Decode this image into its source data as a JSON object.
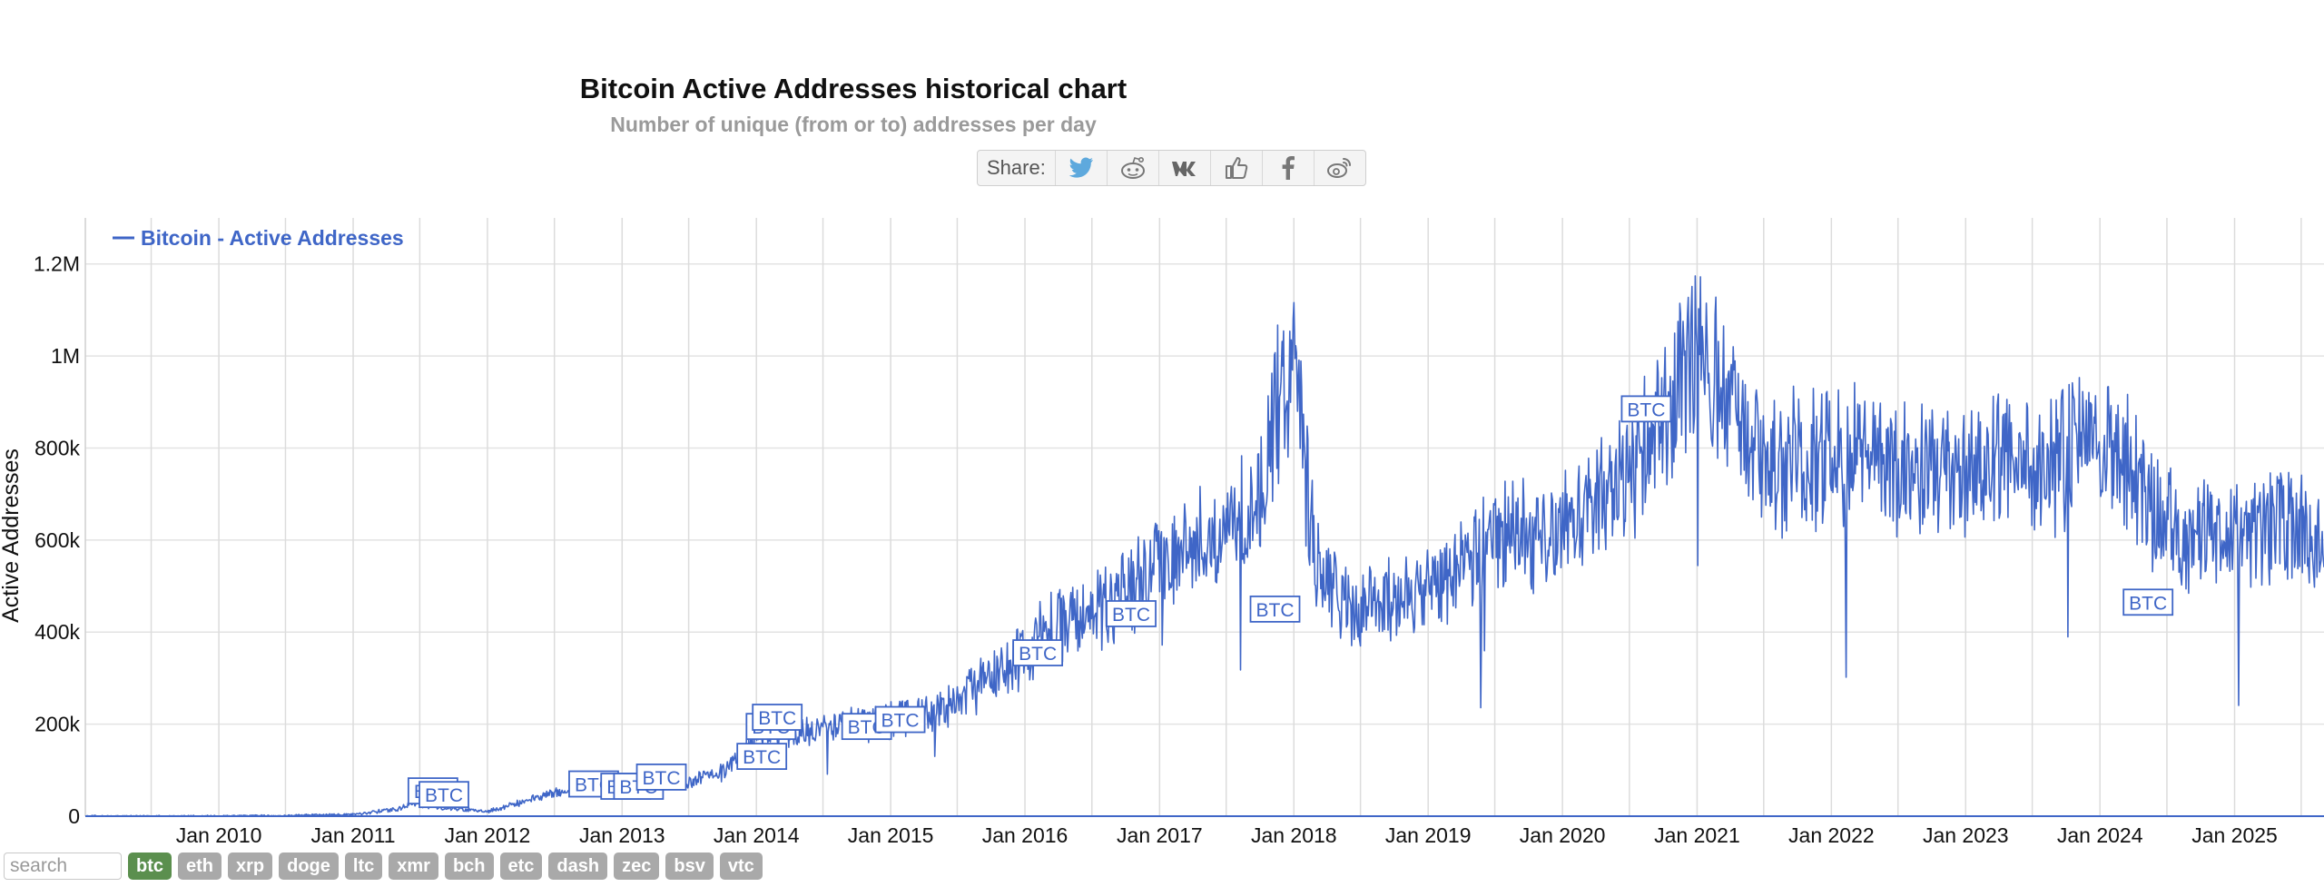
{
  "header": {
    "title": "Bitcoin Active Addresses historical chart",
    "subtitle": "Number of unique (from or to) addresses per day"
  },
  "share": {
    "label": "Share:",
    "icons": [
      "twitter-icon",
      "reddit-icon",
      "vk-icon",
      "like-icon",
      "facebook-icon",
      "weibo-icon"
    ]
  },
  "chart_data": {
    "type": "line",
    "title": "Bitcoin Active Addresses historical chart",
    "subtitle": "Number of unique (from or to) addresses per day",
    "ylabel": "Active Addresses",
    "xlabel": "",
    "legend": {
      "label": "Bitcoin - Active Addresses",
      "position": "top-left"
    },
    "grid": true,
    "color": "#3f66c7",
    "xlim": [
      "2009-01-03",
      "2025-09-01"
    ],
    "ylim": [
      0,
      1300000
    ],
    "x_ticks": [
      "Jan 2010",
      "Jan 2011",
      "Jan 2012",
      "Jan 2013",
      "Jan 2014",
      "Jan 2015",
      "Jan 2016",
      "Jan 2017",
      "Jan 2018",
      "Jan 2019",
      "Jan 2020",
      "Jan 2021",
      "Jan 2022",
      "Jan 2023",
      "Jan 2024",
      "Jan 2025"
    ],
    "y_ticks": [
      {
        "value": 0,
        "label": "0"
      },
      {
        "value": 200000,
        "label": "200k"
      },
      {
        "value": 400000,
        "label": "400k"
      },
      {
        "value": 600000,
        "label": "600k"
      },
      {
        "value": 800000,
        "label": "800k"
      },
      {
        "value": 1000000,
        "label": "1M"
      },
      {
        "value": 1200000,
        "label": "1.2M"
      }
    ],
    "series": [
      {
        "name": "Bitcoin - Active Addresses",
        "x": [
          "2009-01-03",
          "2010-01-01",
          "2010-06-01",
          "2011-01-01",
          "2011-05-01",
          "2011-06-10",
          "2011-09-01",
          "2012-01-01",
          "2012-04-01",
          "2012-07-01",
          "2012-10-01",
          "2013-01-01",
          "2013-04-01",
          "2013-07-01",
          "2013-10-01",
          "2013-12-01",
          "2014-01-01",
          "2014-04-01",
          "2014-07-01",
          "2014-10-01",
          "2015-01-01",
          "2015-04-01",
          "2015-07-01",
          "2015-10-01",
          "2016-01-01",
          "2016-04-01",
          "2016-07-01",
          "2016-10-01",
          "2017-01-01",
          "2017-04-01",
          "2017-07-01",
          "2017-10-01",
          "2017-12-15",
          "2018-01-15",
          "2018-03-01",
          "2018-06-01",
          "2018-09-01",
          "2018-12-01",
          "2019-03-01",
          "2019-06-01",
          "2019-09-01",
          "2019-12-01",
          "2020-03-01",
          "2020-06-01",
          "2020-09-01",
          "2020-12-01",
          "2021-01-15",
          "2021-03-01",
          "2021-06-01",
          "2021-09-01",
          "2021-12-01",
          "2022-03-01",
          "2022-06-01",
          "2022-09-01",
          "2022-12-01",
          "2023-03-01",
          "2023-06-01",
          "2023-09-01",
          "2023-12-01",
          "2024-03-01",
          "2024-06-01",
          "2024-09-01",
          "2024-12-01",
          "2025-03-01",
          "2025-06-01",
          "2025-09-01"
        ],
        "values": [
          0,
          200,
          1000,
          4000,
          15000,
          28000,
          18000,
          10000,
          30000,
          50000,
          60000,
          68000,
          80000,
          75000,
          95000,
          140000,
          185000,
          175000,
          190000,
          205000,
          210000,
          225000,
          250000,
          300000,
          350000,
          420000,
          440000,
          480000,
          560000,
          580000,
          620000,
          700000,
          1000000,
          900000,
          550000,
          450000,
          460000,
          470000,
          520000,
          580000,
          620000,
          600000,
          650000,
          720000,
          820000,
          950000,
          1020000,
          930000,
          790000,
          760000,
          790000,
          800000,
          750000,
          780000,
          720000,
          760000,
          790000,
          760000,
          840000,
          790000,
          650000,
          600000,
          620000,
          610000,
          640000,
          600000
        ]
      }
    ],
    "annotations": [
      {
        "label": "BTC",
        "x": "2011-06-10",
        "y": 55000
      },
      {
        "label": "BTC",
        "x": "2011-07-10",
        "y": 47000
      },
      {
        "label": "BTC",
        "x": "2012-08-20",
        "y": 70000
      },
      {
        "label": "BTC",
        "x": "2012-11-15",
        "y": 65000
      },
      {
        "label": "BTC",
        "x": "2012-12-20",
        "y": 65000
      },
      {
        "label": "BTC",
        "x": "2013-02-20",
        "y": 85000
      },
      {
        "label": "BTC",
        "x": "2013-11-20",
        "y": 130000
      },
      {
        "label": "BTC",
        "x": "2013-12-15",
        "y": 195000
      },
      {
        "label": "BTC",
        "x": "2014-01-01",
        "y": 215000
      },
      {
        "label": "BTC",
        "x": "2014-09-01",
        "y": 195000
      },
      {
        "label": "BTC",
        "x": "2014-12-01",
        "y": 210000
      },
      {
        "label": "BTC",
        "x": "2015-12-10",
        "y": 355000
      },
      {
        "label": "BTC",
        "x": "2016-08-20",
        "y": 440000
      },
      {
        "label": "BTC",
        "x": "2017-09-15",
        "y": 450000
      },
      {
        "label": "BTC",
        "x": "2020-06-20",
        "y": 885000
      },
      {
        "label": "BTC",
        "x": "2024-03-15",
        "y": 465000
      }
    ]
  },
  "bottom": {
    "search_placeholder": "search",
    "coins": [
      {
        "label": "btc",
        "active": true
      },
      {
        "label": "eth",
        "active": false
      },
      {
        "label": "xrp",
        "active": false
      },
      {
        "label": "doge",
        "active": false
      },
      {
        "label": "ltc",
        "active": false
      },
      {
        "label": "xmr",
        "active": false
      },
      {
        "label": "bch",
        "active": false
      },
      {
        "label": "etc",
        "active": false
      },
      {
        "label": "dash",
        "active": false
      },
      {
        "label": "zec",
        "active": false
      },
      {
        "label": "bsv",
        "active": false
      },
      {
        "label": "vtc",
        "active": false
      }
    ]
  }
}
